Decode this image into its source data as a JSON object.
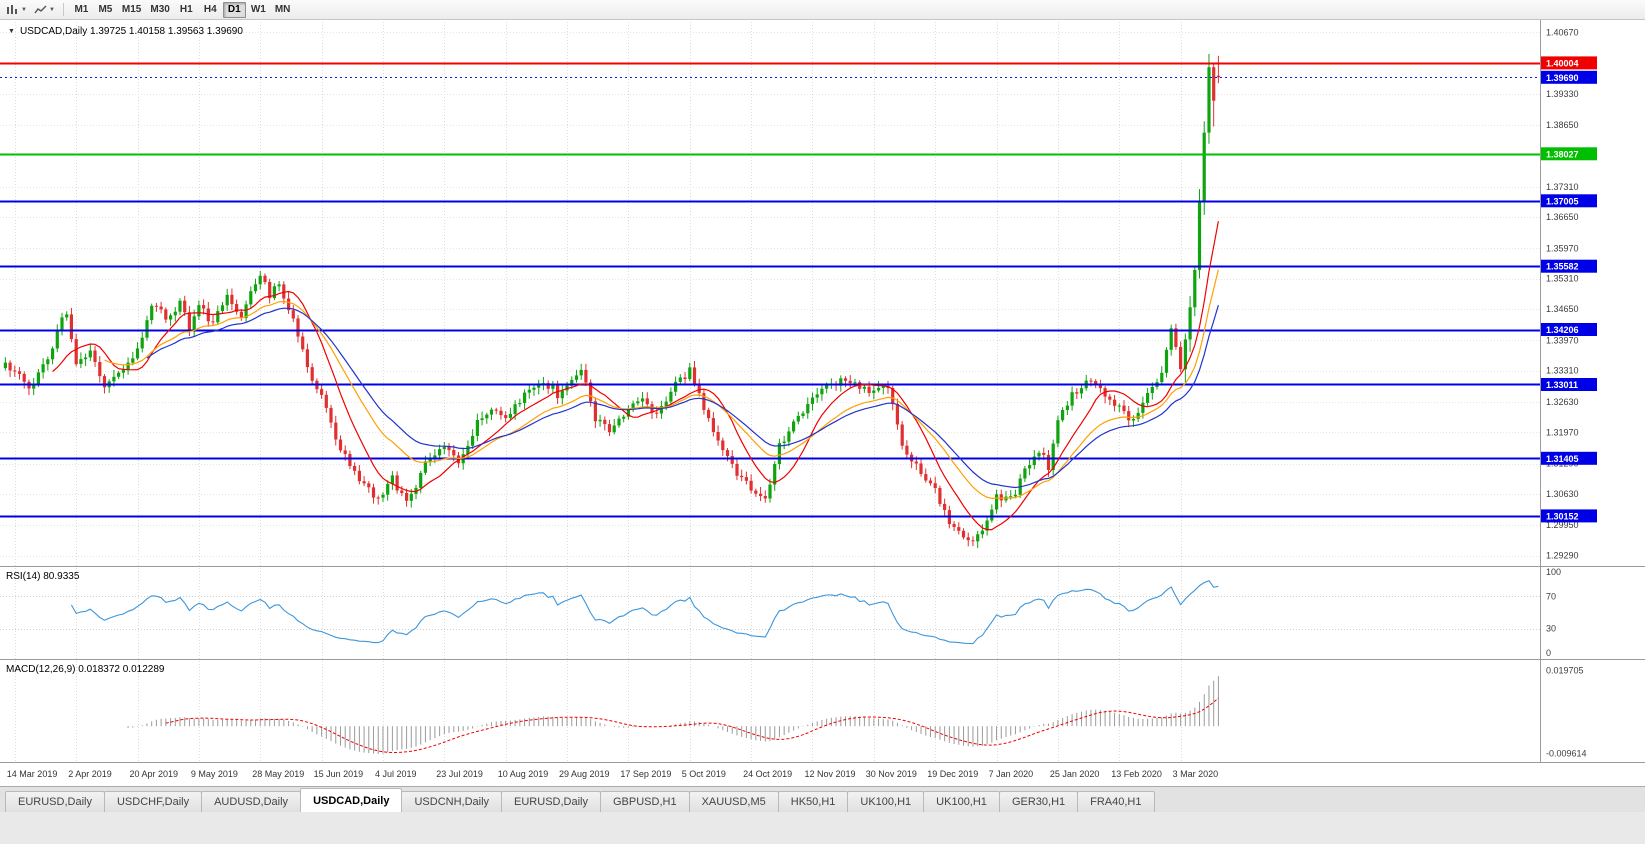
{
  "toolbar": {
    "icons": [
      {
        "name": "candlestick-chart-icon"
      },
      {
        "name": "line-chart-icon"
      }
    ],
    "timeframes": [
      "M1",
      "M5",
      "M15",
      "M30",
      "H1",
      "H4",
      "D1",
      "W1",
      "MN"
    ],
    "active_timeframe": "D1"
  },
  "tabs": {
    "items": [
      "EURUSD,Daily",
      "USDCHF,Daily",
      "AUDUSD,Daily",
      "USDCAD,Daily",
      "USDCNH,Daily",
      "EURUSD,Daily",
      "GBPUSD,H1",
      "XAUUSD,M5",
      "HK50,H1",
      "UK100,H1",
      "UK100,H1",
      "GER30,H1",
      "FRA40,H1"
    ],
    "active_index": 3
  },
  "chart_data": [
    {
      "type": "candlestick",
      "symbol": "USDCAD,Daily",
      "ohlc_label": "1.39725 1.40158 1.39563 1.39690",
      "last_candle": {
        "open": 1.39725,
        "high": 1.40158,
        "low": 1.39563,
        "close": 1.3969
      },
      "current_price": 1.3969,
      "up_color": "#10A310",
      "down_color": "#E03030",
      "price_label_color": "#0000E6",
      "ylim": [
        1.2915,
        1.4085
      ],
      "y_ticks": [
        1.4067,
        1.3933,
        1.3865,
        1.3731,
        1.3665,
        1.3597,
        1.3531,
        1.3465,
        1.3397,
        1.3331,
        1.3263,
        1.3197,
        1.3129,
        1.3063,
        1.2995,
        1.2929
      ],
      "hlines": [
        {
          "value": 1.40004,
          "color": "#F00000"
        },
        {
          "value": 1.38027,
          "color": "#00BE00"
        },
        {
          "value": 1.37005,
          "color": "#0000E6"
        },
        {
          "value": 1.35582,
          "color": "#0000E6"
        },
        {
          "value": 1.34206,
          "color": "#0000E6"
        },
        {
          "value": 1.33011,
          "color": "#0000E6"
        },
        {
          "value": 1.31405,
          "color": "#0000E6"
        },
        {
          "value": 1.30152,
          "color": "#0000E6"
        }
      ],
      "moving_averages": [
        {
          "period": 10,
          "method": "sma",
          "color": "#F00000"
        },
        {
          "period": 21,
          "method": "ema",
          "color": "#FFA000"
        },
        {
          "period": 30,
          "method": "ema",
          "color": "#2233CC"
        }
      ],
      "candle_count": 258,
      "x_label_start": 2,
      "x_label_step": 13,
      "x_labels": [
        "14 Mar 2019",
        "2 Apr 2019",
        "20 Apr 2019",
        "9 May 2019",
        "28 May 2019",
        "15 Jun 2019",
        "4 Jul 2019",
        "23 Jul 2019",
        "10 Aug 2019",
        "29 Aug 2019",
        "17 Sep 2019",
        "5 Oct 2019",
        "24 Oct 2019",
        "12 Nov 2019",
        "30 Nov 2019",
        "19 Dec 2019",
        "7 Jan 2020",
        "25 Jan 2020",
        "13 Feb 2020",
        "3 Mar 2020"
      ],
      "close_anchors": [
        [
          0,
          1.334
        ],
        [
          2,
          1.333
        ],
        [
          5,
          1.3295
        ],
        [
          9,
          1.335
        ],
        [
          12,
          1.344
        ],
        [
          13,
          1.3445
        ],
        [
          15,
          1.335
        ],
        [
          18,
          1.337
        ],
        [
          21,
          1.329
        ],
        [
          25,
          1.334
        ],
        [
          28,
          1.3375
        ],
        [
          31,
          1.348
        ],
        [
          34,
          1.3445
        ],
        [
          37,
          1.348
        ],
        [
          39,
          1.3425
        ],
        [
          41,
          1.347
        ],
        [
          44,
          1.3435
        ],
        [
          47,
          1.349
        ],
        [
          50,
          1.345
        ],
        [
          52,
          1.35
        ],
        [
          54,
          1.3545
        ],
        [
          56,
          1.349
        ],
        [
          58,
          1.3525
        ],
        [
          61,
          1.344
        ],
        [
          64,
          1.334
        ],
        [
          67,
          1.327
        ],
        [
          70,
          1.3185
        ],
        [
          73,
          1.313
        ],
        [
          76,
          1.308
        ],
        [
          79,
          1.305
        ],
        [
          82,
          1.3095
        ],
        [
          85,
          1.304
        ],
        [
          89,
          1.313
        ],
        [
          93,
          1.316
        ],
        [
          96,
          1.313
        ],
        [
          100,
          1.3215
        ],
        [
          103,
          1.3255
        ],
        [
          106,
          1.323
        ],
        [
          110,
          1.3275
        ],
        [
          114,
          1.331
        ],
        [
          117,
          1.328
        ],
        [
          119,
          1.329
        ],
        [
          122,
          1.334
        ],
        [
          125,
          1.323
        ],
        [
          128,
          1.3205
        ],
        [
          132,
          1.3245
        ],
        [
          135,
          1.3265
        ],
        [
          138,
          1.323
        ],
        [
          142,
          1.33
        ],
        [
          145,
          1.333
        ],
        [
          148,
          1.325
        ],
        [
          151,
          1.3185
        ],
        [
          154,
          1.3125
        ],
        [
          158,
          1.307
        ],
        [
          161,
          1.305
        ],
        [
          164,
          1.3165
        ],
        [
          168,
          1.3235
        ],
        [
          171,
          1.3265
        ],
        [
          174,
          1.3295
        ],
        [
          178,
          1.3315
        ],
        [
          181,
          1.33
        ],
        [
          184,
          1.328
        ],
        [
          187,
          1.3295
        ],
        [
          190,
          1.317
        ],
        [
          193,
          1.3125
        ],
        [
          197,
          1.3075
        ],
        [
          200,
          1.3
        ],
        [
          204,
          1.2958
        ],
        [
          207,
          1.299
        ],
        [
          210,
          1.306
        ],
        [
          213,
          1.305
        ],
        [
          216,
          1.311
        ],
        [
          219,
          1.316
        ],
        [
          221,
          1.312
        ],
        [
          223,
          1.323
        ],
        [
          226,
          1.328
        ],
        [
          229,
          1.331
        ],
        [
          232,
          1.329
        ],
        [
          236,
          1.325
        ],
        [
          239,
          1.322
        ],
        [
          242,
          1.328
        ],
        [
          245,
          1.332
        ],
        [
          247,
          1.342
        ],
        [
          249,
          1.3335
        ],
        [
          250,
          1.34
        ],
        [
          251,
          1.347
        ],
        [
          252,
          1.355
        ],
        [
          253,
          1.37
        ],
        [
          254,
          1.385
        ],
        [
          255,
          1.399
        ],
        [
          256,
          1.392
        ],
        [
          257,
          1.3969
        ]
      ],
      "high_overrides": [
        [
          255,
          1.402
        ],
        [
          256,
          1.4
        ]
      ],
      "low_overrides": [
        [
          256,
          1.3862
        ]
      ]
    },
    {
      "type": "line",
      "indicator": "RSI",
      "label": "RSI(14) 80.9335",
      "period": 14,
      "last_value": 80.9335,
      "levels": [
        70,
        30
      ],
      "y_ticks": [
        100,
        70,
        30,
        0
      ],
      "ylim": [
        0,
        100
      ],
      "color": "#3C96DC"
    },
    {
      "type": "bar",
      "indicator": "MACD",
      "label": "MACD(12,26,9) 0.018372 0.012289",
      "fast": 12,
      "slow": 26,
      "signal": 9,
      "last_values": [
        0.018372,
        0.012289
      ],
      "y_ticks": [
        0.019705,
        -0.009614
      ],
      "histogram_color": "#9A9A9A",
      "signal_color": "#F00000"
    }
  ]
}
